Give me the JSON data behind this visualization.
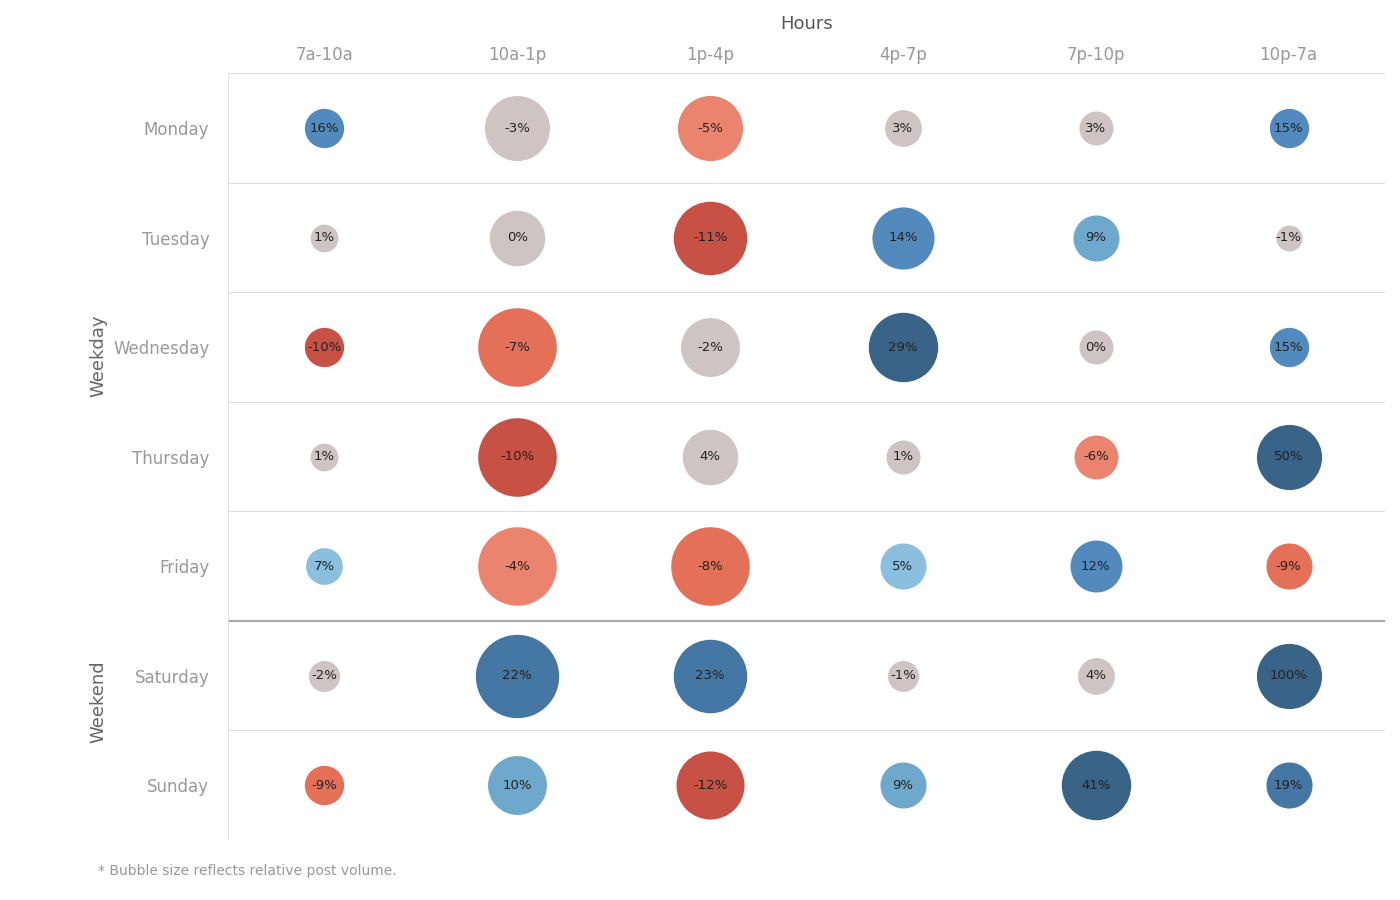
{
  "hours": [
    "7a-10a",
    "10a-1p",
    "1p-4p",
    "4p-7p",
    "7p-10p",
    "10p-7a"
  ],
  "days": [
    "Monday",
    "Tuesday",
    "Wednesday",
    "Thursday",
    "Friday",
    "Saturday",
    "Sunday"
  ],
  "values": [
    [
      16,
      -3,
      -5,
      3,
      3,
      15
    ],
    [
      1,
      0,
      -11,
      14,
      9,
      -1
    ],
    [
      -10,
      -7,
      -2,
      29,
      0,
      15
    ],
    [
      1,
      -10,
      4,
      1,
      -6,
      50
    ],
    [
      7,
      -4,
      -8,
      5,
      12,
      -9
    ],
    [
      -2,
      22,
      23,
      -1,
      4,
      100
    ],
    [
      -9,
      10,
      -12,
      9,
      41,
      19
    ]
  ],
  "bubble_sizes": [
    [
      800,
      2200,
      2200,
      700,
      600,
      800
    ],
    [
      400,
      1600,
      2800,
      2000,
      1100,
      350
    ],
    [
      800,
      3200,
      1800,
      2500,
      600,
      800
    ],
    [
      400,
      3200,
      1600,
      600,
      1000,
      2200
    ],
    [
      700,
      3200,
      3200,
      1100,
      1400,
      1100
    ],
    [
      500,
      3600,
      2800,
      500,
      700,
      2200
    ],
    [
      800,
      1800,
      2400,
      1100,
      2500,
      1100
    ]
  ],
  "title": "Hours",
  "weekday_label": "Weekday",
  "weekend_label": "Weekend",
  "footnote": "* Bubble size reflects relative post volume.",
  "bg_color": "#ffffff",
  "separator_color": "#aaaaaa",
  "grid_color": "#dddddd",
  "axis_label_color": "#999999",
  "side_label_color": "#666666",
  "footnote_color": "#999999"
}
